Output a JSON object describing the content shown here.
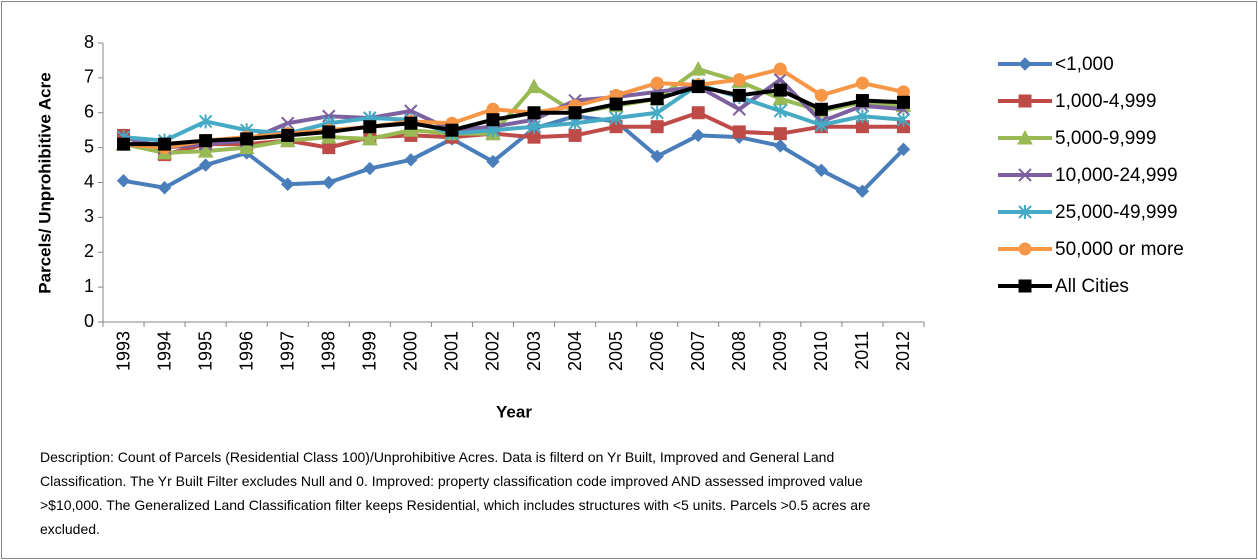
{
  "chart_data": {
    "type": "line",
    "x_label": "Year",
    "y_label": "Parcels/ Unprohibitive Acre",
    "categories": [
      "1993",
      "1994",
      "1995",
      "1996",
      "1997",
      "1998",
      "1999",
      "2000",
      "2001",
      "2002",
      "2003",
      "2004",
      "2005",
      "2006",
      "2007",
      "2008",
      "2009",
      "2010",
      "2011",
      "2012"
    ],
    "ylim": [
      0,
      8
    ],
    "yticks": [
      0,
      1,
      2,
      3,
      4,
      5,
      6,
      7,
      8
    ],
    "grid": false,
    "legend": "right",
    "series": [
      {
        "name": "<1,000",
        "color": "#4a7ebb",
        "marker": "diamond",
        "values": [
          4.05,
          3.85,
          4.5,
          4.85,
          3.95,
          4.0,
          4.4,
          4.65,
          5.25,
          4.6,
          5.55,
          5.9,
          5.75,
          4.75,
          5.35,
          5.3,
          5.05,
          4.35,
          3.75,
          4.95
        ]
      },
      {
        "name": "1,000-4,999",
        "color": "#be4b48",
        "marker": "square",
        "values": [
          5.35,
          4.8,
          5.1,
          5.1,
          5.2,
          5.0,
          5.3,
          5.35,
          5.3,
          5.4,
          5.3,
          5.35,
          5.6,
          5.6,
          6.0,
          5.45,
          5.4,
          5.6,
          5.6,
          5.6
        ]
      },
      {
        "name": "5,000-9,999",
        "color": "#98b954",
        "marker": "triangle",
        "values": [
          5.1,
          4.85,
          4.9,
          5.0,
          5.2,
          5.3,
          5.25,
          5.5,
          5.4,
          5.4,
          6.75,
          6.0,
          6.2,
          6.4,
          7.25,
          6.9,
          6.4,
          6.05,
          6.3,
          6.2
        ]
      },
      {
        "name": "10,000-24,999",
        "color": "#7d60a0",
        "marker": "x",
        "values": [
          5.3,
          5.0,
          5.1,
          5.2,
          5.7,
          5.9,
          5.85,
          6.05,
          5.5,
          5.6,
          5.8,
          6.35,
          6.45,
          6.6,
          6.75,
          6.1,
          6.95,
          5.75,
          6.2,
          6.1
        ]
      },
      {
        "name": "25,000-49,999",
        "color": "#46aac5",
        "marker": "star",
        "values": [
          5.3,
          5.2,
          5.75,
          5.5,
          5.4,
          5.7,
          5.85,
          5.8,
          5.4,
          5.5,
          5.6,
          5.7,
          5.85,
          6.0,
          6.8,
          6.45,
          6.05,
          5.65,
          5.9,
          5.8
        ]
      },
      {
        "name": "50,000 or more",
        "color": "#f79646",
        "marker": "circle",
        "values": [
          5.1,
          5.0,
          5.2,
          5.3,
          5.4,
          5.5,
          5.6,
          5.75,
          5.7,
          6.1,
          6.0,
          6.2,
          6.5,
          6.85,
          6.8,
          6.95,
          7.25,
          6.5,
          6.85,
          6.6
        ]
      },
      {
        "name": "All Cities",
        "color": "#000000",
        "marker": "square",
        "values": [
          5.1,
          5.1,
          5.2,
          5.25,
          5.35,
          5.45,
          5.6,
          5.7,
          5.5,
          5.8,
          6.0,
          6.0,
          6.25,
          6.4,
          6.75,
          6.5,
          6.65,
          6.1,
          6.35,
          6.3
        ]
      }
    ],
    "description": [
      "Description: Count of Parcels (Residential Class 100)/Unprohibitive Acres. Data is filterd on Yr Built, Improved and General Land",
      "Classification. The Yr Built Filter excludes Null and 0.  Improved: property classification code improved AND assessed improved value",
      ">$10,000.  The Generalized Land Classification filter keeps Residential, which includes structures with <5 units.  Parcels >0.5 acres are",
      "excluded."
    ]
  }
}
